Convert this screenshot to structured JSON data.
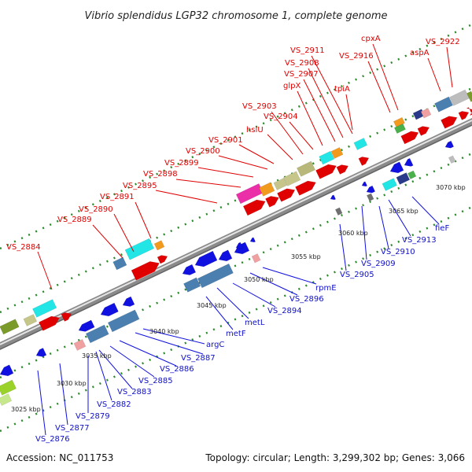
{
  "title": "Vibrio splendidus LGP32 chromosome 1, complete genome",
  "footer": {
    "accession": "Accession: NC_011753",
    "stats": "Topology: circular; Length: 3,299,302 bp; Genes: 3,066"
  },
  "colors": {
    "top_label": "#e00000",
    "bottom_label": "#1010c8",
    "backbone": "#7f7f7f",
    "forward_arrow": "#e00000",
    "reverse_arrow": "#1010e0",
    "dotted_guide": "#2a8a2a"
  },
  "ticks": [
    "3025 kbp",
    "3030 kbp",
    "3035 kbp",
    "3040 kbp",
    "3045 kbp",
    "3050 kbp",
    "3055 kbp",
    "3060 kbp",
    "3065 kbp",
    "3070 kbp"
  ],
  "top_labels": [
    "VS_2884",
    "VS_2889",
    "VS_2890",
    "VS_2891",
    "VS_2895",
    "VS_2898",
    "VS_2899",
    "VS_2900",
    "VS_2901",
    "hslU",
    "VS_2903",
    "VS_2904",
    "glpX",
    "VS_2907",
    "VS_2908",
    "VS_2911",
    "VS_2916",
    "cpxA",
    "tpiA",
    "aspA",
    "VS_2922"
  ],
  "bottom_labels": [
    "VS_2876",
    "VS_2877",
    "VS_2879",
    "VS_2882",
    "VS_2883",
    "VS_2885",
    "VS_2886",
    "VS_2887",
    "argC",
    "metF",
    "metL",
    "VS_2894",
    "VS_2896",
    "rpmE",
    "VS_2905",
    "VS_2909",
    "VS_2910",
    "VS_2913",
    "fieF"
  ]
}
